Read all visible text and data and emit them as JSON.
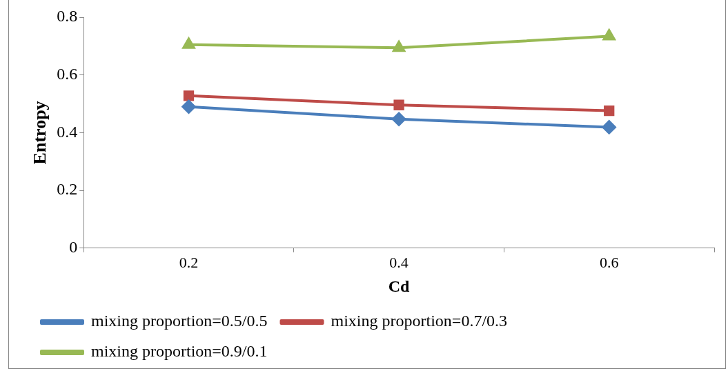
{
  "chart_data": {
    "type": "line",
    "xlabel": "Cd",
    "ylabel": "Entropy",
    "categories": [
      "0.2",
      "0.4",
      "0.6"
    ],
    "series": [
      {
        "name": "mixing proportion=0.5/0.5",
        "color": "#4a7ebb",
        "marker": "diamond",
        "values": [
          0.49,
          0.447,
          0.419
        ]
      },
      {
        "name": "mixing proportion=0.7/0.3",
        "color": "#be4b48",
        "marker": "square",
        "values": [
          0.528,
          0.496,
          0.476
        ]
      },
      {
        "name": "mixing proportion=0.9/0.1",
        "color": "#98b954",
        "marker": "triangle",
        "values": [
          0.705,
          0.694,
          0.734
        ]
      }
    ],
    "ylim": [
      0,
      0.8
    ],
    "yticks": [
      0,
      0.2,
      0.4,
      0.6,
      0.8
    ],
    "grid": false,
    "legend": "bottom",
    "line_style": "solid"
  }
}
